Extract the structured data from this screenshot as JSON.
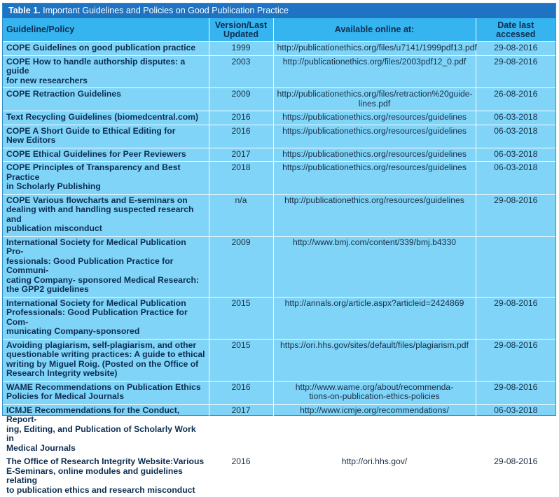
{
  "table": {
    "caption_label": "Table 1.",
    "caption_text": " Important Guidelines and Policies on Good Publication Practice",
    "headers": {
      "guideline": "Guideline/Policy",
      "version_line1": "Version/Last",
      "version_line2": "Updated",
      "online": "Available online at:",
      "date_line1": "Date last",
      "date_line2": "accessed"
    },
    "rows": [
      {
        "g": [
          "COPE Guidelines on good publication practice"
        ],
        "v": "1999",
        "u": [
          "http://publicationethics.org/files/u7141/1999pdf13.pdf"
        ],
        "d": "29-08-2016"
      },
      {
        "g": [
          "COPE How to handle authorship disputes: a guide",
          "for new researchers"
        ],
        "v": "2003",
        "u": [
          "http://publicationethics.org/files/2003pdf12_0.pdf"
        ],
        "d": "29-08-2016"
      },
      {
        "g": [
          "COPE Retraction Guidelines"
        ],
        "v": "2009",
        "u": [
          "http://publicationethics.org/files/retraction%20guide-",
          "lines.pdf"
        ],
        "d": "26-08-2016"
      },
      {
        "g": [
          "Text Recycling Guidelines (biomedcentral.com)"
        ],
        "v": "2016",
        "u": [
          "https://publicationethics.org/resources/guidelines"
        ],
        "d": "06-03-2018"
      },
      {
        "g": [
          "COPE A Short Guide to Ethical Editing for",
          "New Editors"
        ],
        "v": "2016",
        "u": [
          "https://publicationethics.org/resources/guidelines"
        ],
        "d": "06-03-2018"
      },
      {
        "g": [
          "COPE Ethical Guidelines for Peer Reviewers"
        ],
        "v": "2017",
        "u": [
          "https://publicationethics.org/resources/guidelines"
        ],
        "d": "06-03-2018"
      },
      {
        "g": [
          "COPE Principles of Transparency and Best Practice",
          "in Scholarly Publishing"
        ],
        "v": "2018",
        "u": [
          "https://publicationethics.org/resources/guidelines"
        ],
        "d": "06-03-2018"
      },
      {
        "g": [
          "COPE Various flowcharts and E-seminars on",
          "dealing with and handling suspected research and",
          "publication misconduct"
        ],
        "v": "n/a",
        "u": [
          "http://publicationethics.org/resources/guidelines"
        ],
        "d": "29-08-2016"
      },
      {
        "g": [
          "International Society for Medical Publication Pro-",
          "fessionals: Good Publication Practice for Communi-",
          "cating Company- sponsored Medical Research:",
          "the GPP2 guidelines"
        ],
        "v": "2009",
        "u": [
          "http://www.bmj.com/content/339/bmj.b4330"
        ],
        "d": ""
      },
      {
        "g": [
          "International Society for Medical Publication",
          "Professionals: Good Publication Practice for Com-",
          "municating Company-sponsored"
        ],
        "v": "2015",
        "u": [
          "http://annals.org/article.aspx?articleid=2424869"
        ],
        "d": "29-08-2016"
      },
      {
        "g": [
          "Avoiding plagiarism, self-plagiarism, and other",
          "questionable writing practices: A guide to ethical",
          "writing by Miguel Roig. (Posted on the Office of",
          "Research Integrity website)"
        ],
        "v": "2015",
        "u": [
          "https://ori.hhs.gov/sites/default/files/plagiarism.pdf"
        ],
        "d": "29-08-2016"
      },
      {
        "g": [
          "WAME Recommendations on Publication Ethics",
          "Policies for Medical Journals"
        ],
        "v": "2016",
        "u": [
          "http://www.wame.org/about/recommenda-",
          "tions-on-publication-ethics-policies"
        ],
        "d": "29-08-2016"
      },
      {
        "g": [
          "ICMJE Recommendations for the Conduct, Report-",
          "ing, Editing, and Publication of Scholarly Work in",
          "Medical Journals"
        ],
        "v": "2017",
        "u": [
          "http://www.icmje.org/recommendations/"
        ],
        "d": "06-03-2018"
      },
      {
        "g": [
          "The Office of Research Integrity Website:Various",
          "E-Seminars, online modules and guidelines relating",
          "to publication ethics and research misconduct"
        ],
        "v": "2016",
        "u": [
          "http://ori.hhs.gov/"
        ],
        "d": "29-08-2016"
      }
    ]
  }
}
